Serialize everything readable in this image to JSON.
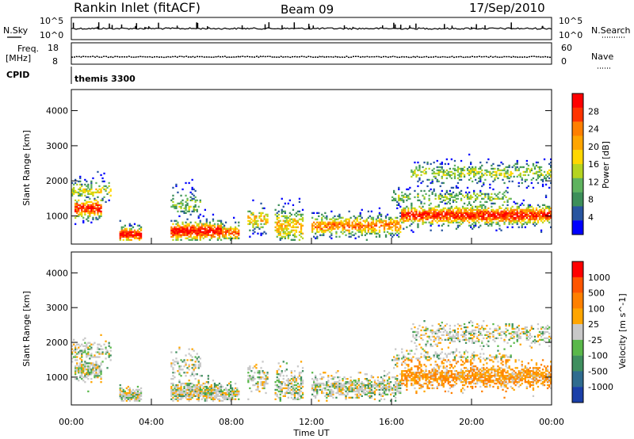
{
  "header": {
    "title": "Rankin Inlet (fitACF)",
    "beam": "Beam 09",
    "date": "17/Sep/2010"
  },
  "top_panels": {
    "nsky_label": "N.Sky",
    "nsearch_label": "N.Search",
    "nsky_ticks": [
      "10^5",
      "10^0"
    ],
    "nsearch_ticks": [
      "10^5",
      "10^0"
    ],
    "freq_label_1": "Freq.",
    "freq_label_2": "[MHz]",
    "freq_ticks": [
      "18",
      "8"
    ],
    "nave_label": "Nave",
    "nave_ticks": [
      "60",
      "0"
    ],
    "cpid_label": "CPID",
    "cpid_value": "themis 3300"
  },
  "chart_data": [
    {
      "type": "heatmap",
      "ylabel": "Slant Range [km]",
      "y_ticks": [
        1000,
        2000,
        3000,
        4000
      ],
      "ylim": [
        200,
        4600
      ],
      "xlim": [
        0,
        24
      ],
      "colorbar": {
        "label": "Power [dB]",
        "ticks": [
          "4",
          "8",
          "12",
          "16",
          "20",
          "24",
          "28"
        ],
        "colors": [
          "#0000ff",
          "#2855a0",
          "#3d8f5a",
          "#5fb35f",
          "#b5d420",
          "#ffd700",
          "#ffa500",
          "#ff7f00",
          "#ff3300",
          "#ff0000"
        ]
      }
    },
    {
      "type": "heatmap",
      "ylabel": "Slant Range [km]",
      "xlabel": "Time UT",
      "y_ticks": [
        1000,
        2000,
        3000,
        4000
      ],
      "ylim": [
        200,
        4600
      ],
      "xlim": [
        0,
        24
      ],
      "x_ticks": [
        "00:00",
        "04:00",
        "08:00",
        "12:00",
        "16:00",
        "20:00",
        "00:00"
      ],
      "colorbar": {
        "label": "Velocity [m s^-1]",
        "ticks": [
          "1000",
          "500",
          "100",
          "25",
          "-25",
          "-100",
          "-500",
          "-1000"
        ],
        "colors": [
          "#1a3fa8",
          "#2f6c8f",
          "#3f8f5f",
          "#5ab84a",
          "#c8c8c8",
          "#ffa500",
          "#ff8000",
          "#ff5500",
          "#ff0000"
        ]
      }
    }
  ]
}
